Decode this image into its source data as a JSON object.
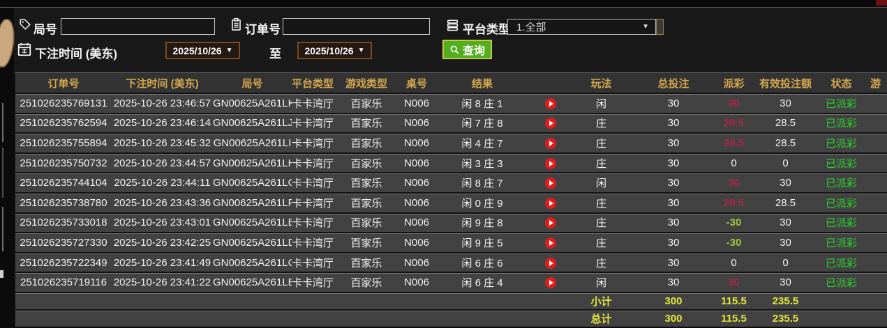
{
  "colors": {
    "payout_positive_red": "#a82746",
    "payout_negative_green": "#9dc938",
    "status_green": "#2bd42b",
    "totals_yellow": "#e6e63a",
    "header_gold": "#d3a74e",
    "search_button_green": "#53ad1e",
    "date_border_brown": "#7a4a20",
    "play_button_red": "#e31b1b"
  },
  "filters": {
    "game_no_label": "局号",
    "game_no_value": "",
    "order_no_label": "订单号",
    "order_no_value": "",
    "platform_label": "平台类型",
    "platform_value": "1.全部",
    "bet_time_label": "下注时间 (美东)",
    "date_from": "2025/10/26",
    "to_label": "至",
    "date_to": "2025/10/26",
    "search_label": "查询"
  },
  "table": {
    "columns": [
      {
        "key": "order",
        "label": "订单号"
      },
      {
        "key": "time",
        "label": "下注时间 (美东)"
      },
      {
        "key": "game_no",
        "label": "局号"
      },
      {
        "key": "platform",
        "label": "平台类型"
      },
      {
        "key": "game_type",
        "label": "游戏类型"
      },
      {
        "key": "table_no",
        "label": "桌号"
      },
      {
        "key": "result",
        "label": "结果"
      },
      {
        "key": "play_btn",
        "label": ""
      },
      {
        "key": "play",
        "label": "玩法"
      },
      {
        "key": "total_bet",
        "label": "总投注"
      },
      {
        "key": "payout",
        "label": "派彩"
      },
      {
        "key": "valid_bet",
        "label": "有效投注额"
      },
      {
        "key": "status",
        "label": "状态"
      },
      {
        "key": "extra",
        "label": "游"
      }
    ],
    "rows": [
      {
        "order": "251026235769131",
        "time": "2025-10-26 23:46:57",
        "game_no": "GN00625A261LK",
        "platform": "卡卡湾厅",
        "game_type": "百家乐",
        "table_no": "N006",
        "result": "闲 8 庄 1",
        "play": "闲",
        "total_bet": "30",
        "payout": "30",
        "payout_class": "pos",
        "valid_bet": "30",
        "status": "已派彩"
      },
      {
        "order": "251026235762594",
        "time": "2025-10-26 23:46:14",
        "game_no": "GN00625A261LJ",
        "platform": "卡卡湾厅",
        "game_type": "百家乐",
        "table_no": "N006",
        "result": "闲 7 庄 8",
        "play": "庄",
        "total_bet": "30",
        "payout": "28.5",
        "payout_class": "pos",
        "valid_bet": "28.5",
        "status": "已派彩"
      },
      {
        "order": "251026235755894",
        "time": "2025-10-26 23:45:32",
        "game_no": "GN00625A261LI",
        "platform": "卡卡湾厅",
        "game_type": "百家乐",
        "table_no": "N006",
        "result": "闲 4 庄 7",
        "play": "庄",
        "total_bet": "30",
        "payout": "28.5",
        "payout_class": "pos",
        "valid_bet": "28.5",
        "status": "已派彩"
      },
      {
        "order": "251026235750732",
        "time": "2025-10-26 23:44:57",
        "game_no": "GN00625A261LH",
        "platform": "卡卡湾厅",
        "game_type": "百家乐",
        "table_no": "N006",
        "result": "闲 3 庄 3",
        "play": "庄",
        "total_bet": "30",
        "payout": "0",
        "payout_class": "zero",
        "valid_bet": "0",
        "status": "已派彩"
      },
      {
        "order": "251026235744104",
        "time": "2025-10-26 23:44:11",
        "game_no": "GN00625A261LG",
        "platform": "卡卡湾厅",
        "game_type": "百家乐",
        "table_no": "N006",
        "result": "闲 8 庄 7",
        "play": "闲",
        "total_bet": "30",
        "payout": "30",
        "payout_class": "pos",
        "valid_bet": "30",
        "status": "已派彩"
      },
      {
        "order": "251026235738780",
        "time": "2025-10-26 23:43:36",
        "game_no": "GN00625A261LF",
        "platform": "卡卡湾厅",
        "game_type": "百家乐",
        "table_no": "N006",
        "result": "闲 0 庄 9",
        "play": "庄",
        "total_bet": "30",
        "payout": "28.5",
        "payout_class": "pos",
        "valid_bet": "28.5",
        "status": "已派彩"
      },
      {
        "order": "251026235733018",
        "time": "2025-10-26 23:43:01",
        "game_no": "GN00625A261LE",
        "platform": "卡卡湾厅",
        "game_type": "百家乐",
        "table_no": "N006",
        "result": "闲 9 庄 8",
        "play": "庄",
        "total_bet": "30",
        "payout": "-30",
        "payout_class": "neg",
        "valid_bet": "30",
        "status": "已派彩"
      },
      {
        "order": "251026235727330",
        "time": "2025-10-26 23:42:25",
        "game_no": "GN00625A261LD",
        "platform": "卡卡湾厅",
        "game_type": "百家乐",
        "table_no": "N006",
        "result": "闲 9 庄 5",
        "play": "庄",
        "total_bet": "30",
        "payout": "-30",
        "payout_class": "neg",
        "valid_bet": "30",
        "status": "已派彩"
      },
      {
        "order": "251026235722349",
        "time": "2025-10-26 23:41:49",
        "game_no": "GN00625A261LC",
        "platform": "卡卡湾厅",
        "game_type": "百家乐",
        "table_no": "N006",
        "result": "闲 6 庄 6",
        "play": "庄",
        "total_bet": "30",
        "payout": "0",
        "payout_class": "zero",
        "valid_bet": "0",
        "status": "已派彩"
      },
      {
        "order": "251026235719116",
        "time": "2025-10-26 23:41:22",
        "game_no": "GN00625A261LB",
        "platform": "卡卡湾厅",
        "game_type": "百家乐",
        "table_no": "N006",
        "result": "闲 6 庄 4",
        "play": "闲",
        "total_bet": "30",
        "payout": "30",
        "payout_class": "pos",
        "valid_bet": "30",
        "status": "已派彩"
      }
    ],
    "subtotal": {
      "label": "小计",
      "total_bet": "300",
      "payout": "115.5",
      "valid_bet": "235.5"
    },
    "grand_total": {
      "label": "总计",
      "total_bet": "300",
      "payout": "115.5",
      "valid_bet": "235.5"
    }
  }
}
